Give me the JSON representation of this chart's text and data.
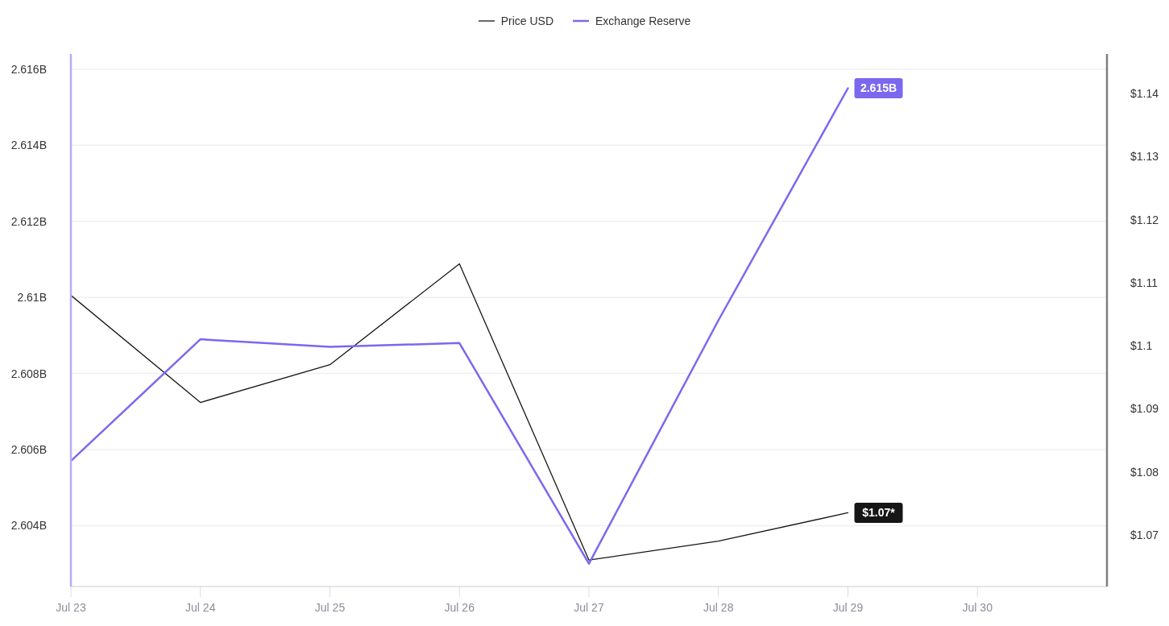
{
  "chart_data": {
    "type": "line",
    "legend": "top",
    "grid": "y",
    "marker": "none",
    "x": [
      "--07-23",
      "--07-24",
      "--07-25",
      "--07-26",
      "--07-27",
      "--07-28",
      "--07-29"
    ],
    "xlim": [
      "--07-23",
      "--07-31"
    ],
    "xticks": [
      {
        "value": "--07-23",
        "label": "Jul 23"
      },
      {
        "value": "--07-24",
        "label": "Jul 24"
      },
      {
        "value": "--07-25",
        "label": "Jul 25"
      },
      {
        "value": "--07-26",
        "label": "Jul 26"
      },
      {
        "value": "--07-27",
        "label": "Jul 27"
      },
      {
        "value": "--07-28",
        "label": "Jul 28"
      },
      {
        "value": "--07-29",
        "label": "Jul 29"
      },
      {
        "value": "--07-30",
        "label": "Jul 30"
      }
    ],
    "ylim": [
      2.6024,
      2.6164
    ],
    "yticks": [
      {
        "value": 2.604,
        "label": "2.604B"
      },
      {
        "value": 2.606,
        "label": "2.606B"
      },
      {
        "value": 2.608,
        "label": "2.608B"
      },
      {
        "value": 2.61,
        "label": "2.61B"
      },
      {
        "value": 2.612,
        "label": "2.612B"
      },
      {
        "value": 2.614,
        "label": "2.614B"
      },
      {
        "value": 2.616,
        "label": "2.616B"
      }
    ],
    "y2lim": [
      1.0618,
      1.1463
    ],
    "y2ticks": [
      {
        "value": 1.07,
        "label": "$1.07"
      },
      {
        "value": 1.08,
        "label": "$1.08"
      },
      {
        "value": 1.09,
        "label": "$1.09"
      },
      {
        "value": 1.1,
        "label": "$1.1"
      },
      {
        "value": 1.11,
        "label": "$1.11"
      },
      {
        "value": 1.12,
        "label": "$1.12"
      },
      {
        "value": 1.13,
        "label": "$1.13"
      },
      {
        "value": 1.14,
        "label": "$1.14"
      }
    ],
    "series": [
      {
        "name": "Price USD",
        "color": "#161616",
        "axis": "y2",
        "values": [
          1.108,
          1.091,
          1.097,
          1.113,
          1.066,
          1.069,
          1.0735
        ],
        "value_labels": [
          null,
          null,
          null,
          null,
          null,
          null,
          "$1.07*"
        ]
      },
      {
        "name": "Exchange Reserve",
        "color": "#7b68ee",
        "values": [
          2.6057,
          2.6089,
          2.6087,
          2.6088,
          2.603,
          2.6094,
          2.6155
        ],
        "value_labels": [
          null,
          null,
          null,
          null,
          null,
          null,
          "2.615B"
        ]
      }
    ]
  }
}
